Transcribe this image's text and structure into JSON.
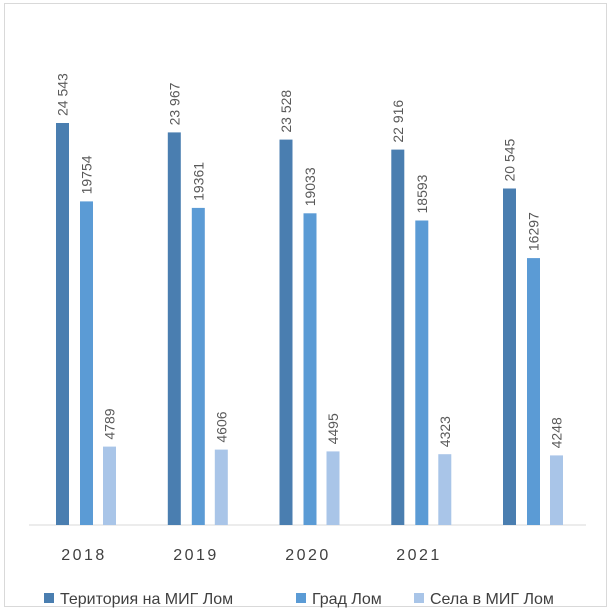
{
  "chart_data": {
    "type": "bar",
    "categories": [
      "2018",
      "2019",
      "2020",
      "2021",
      ""
    ],
    "series": [
      {
        "name": "Територия на МИГ Лом",
        "color": "#4a7eb0",
        "values": [
          24543,
          23967,
          23528,
          22916,
          20545
        ],
        "labels": [
          "24 543",
          "23 967",
          "23 528",
          "22 916",
          "20 545"
        ]
      },
      {
        "name": "Град Лом",
        "color": "#5b9bd5",
        "values": [
          19754,
          19361,
          19033,
          18593,
          16297
        ],
        "labels": [
          "19754",
          "19361",
          "19033",
          "18593",
          "16297"
        ]
      },
      {
        "name": "Села в МИГ Лом",
        "color": "#a9c5e8",
        "values": [
          4789,
          4606,
          4495,
          4323,
          4248
        ],
        "labels": [
          "4789",
          "4606",
          "4495",
          "4323",
          "4248"
        ]
      }
    ],
    "ylim": [
      0,
      26000
    ],
    "grid": false,
    "legend_position": "bottom"
  }
}
